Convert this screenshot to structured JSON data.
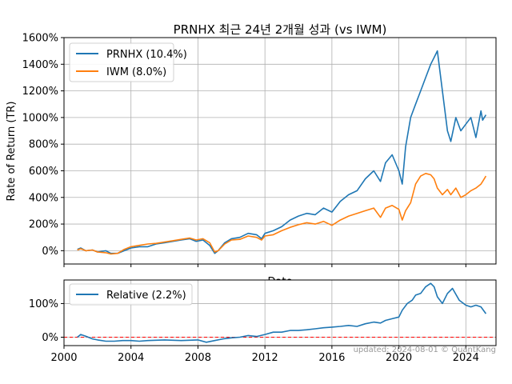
{
  "chart_data": [
    {
      "type": "line",
      "title": "PRNHX 최근 24년 2개월 성과 (vs IWM)",
      "xlabel": "Date",
      "ylabel": "Rate of Return (TR)",
      "xlim": [
        2000.0,
        2025.8
      ],
      "ylim": [
        -100,
        1600
      ],
      "yticks": [
        0,
        200,
        400,
        600,
        800,
        1000,
        1200,
        1400,
        1600
      ],
      "ytick_labels": [
        "0%",
        "200%",
        "400%",
        "600%",
        "800%",
        "1000%",
        "1200%",
        "1400%",
        "1600%"
      ],
      "grid": true,
      "legend_position": "upper-left",
      "series": [
        {
          "name": "PRNHX (10.4%)",
          "color": "#1f77b4",
          "x": [
            2000.8,
            2001.0,
            2001.3,
            2001.7,
            2002.0,
            2002.5,
            2002.8,
            2003.2,
            2003.6,
            2004.0,
            2004.5,
            2005.0,
            2005.5,
            2006.0,
            2006.5,
            2007.0,
            2007.5,
            2007.9,
            2008.3,
            2008.7,
            2009.0,
            2009.2,
            2009.6,
            2010.0,
            2010.5,
            2011.0,
            2011.5,
            2011.8,
            2012.0,
            2012.5,
            2013.0,
            2013.5,
            2014.0,
            2014.5,
            2015.0,
            2015.5,
            2016.0,
            2016.5,
            2017.0,
            2017.5,
            2018.0,
            2018.5,
            2018.9,
            2019.2,
            2019.6,
            2020.0,
            2020.2,
            2020.4,
            2020.7,
            2021.0,
            2021.3,
            2021.6,
            2021.9,
            2022.1,
            2022.3,
            2022.6,
            2022.9,
            2023.1,
            2023.4,
            2023.7,
            2024.0,
            2024.3,
            2024.6,
            2024.9,
            2025.0,
            2025.2
          ],
          "y": [
            10,
            20,
            0,
            5,
            -10,
            0,
            -20,
            -20,
            0,
            20,
            30,
            30,
            50,
            60,
            70,
            80,
            90,
            70,
            80,
            40,
            -20,
            0,
            60,
            90,
            100,
            130,
            120,
            90,
            130,
            150,
            180,
            230,
            260,
            280,
            270,
            320,
            290,
            370,
            420,
            450,
            540,
            600,
            520,
            660,
            720,
            600,
            500,
            780,
            1000,
            1100,
            1200,
            1300,
            1400,
            1450,
            1500,
            1200,
            900,
            820,
            1000,
            900,
            950,
            1000,
            850,
            1050,
            980,
            1020
          ]
        },
        {
          "name": "IWM (8.0%)",
          "color": "#ff7f0e",
          "x": [
            2000.8,
            2001.0,
            2001.3,
            2001.7,
            2002.0,
            2002.5,
            2002.8,
            2003.2,
            2003.6,
            2004.0,
            2004.5,
            2005.0,
            2005.5,
            2006.0,
            2006.5,
            2007.0,
            2007.5,
            2007.9,
            2008.3,
            2008.7,
            2009.0,
            2009.2,
            2009.6,
            2010.0,
            2010.5,
            2011.0,
            2011.5,
            2011.8,
            2012.0,
            2012.5,
            2013.0,
            2013.5,
            2014.0,
            2014.5,
            2015.0,
            2015.5,
            2016.0,
            2016.5,
            2017.0,
            2017.5,
            2018.0,
            2018.5,
            2018.9,
            2019.2,
            2019.6,
            2020.0,
            2020.2,
            2020.4,
            2020.7,
            2021.0,
            2021.3,
            2021.6,
            2021.9,
            2022.1,
            2022.3,
            2022.6,
            2022.9,
            2023.1,
            2023.4,
            2023.7,
            2024.0,
            2024.3,
            2024.6,
            2024.9,
            2025.0,
            2025.2
          ],
          "y": [
            5,
            15,
            0,
            5,
            -10,
            -15,
            -25,
            -20,
            10,
            30,
            40,
            50,
            55,
            65,
            75,
            85,
            95,
            80,
            90,
            60,
            -10,
            0,
            50,
            80,
            85,
            110,
            100,
            80,
            110,
            120,
            150,
            175,
            195,
            210,
            200,
            220,
            190,
            230,
            260,
            280,
            300,
            320,
            250,
            320,
            340,
            310,
            230,
            300,
            360,
            500,
            560,
            580,
            570,
            540,
            470,
            420,
            460,
            420,
            470,
            400,
            420,
            450,
            470,
            500,
            520,
            560
          ]
        }
      ]
    },
    {
      "type": "line",
      "xlim": [
        2000.0,
        2025.8
      ],
      "ylim": [
        -25,
        170
      ],
      "yticks": [
        0,
        100
      ],
      "ytick_labels": [
        "0%",
        "100%"
      ],
      "xticks": [
        2000,
        2004,
        2008,
        2012,
        2016,
        2020,
        2024
      ],
      "xtick_labels": [
        "2000",
        "2004",
        "2008",
        "2012",
        "2016",
        "2020",
        "2024"
      ],
      "grid": true,
      "legend_position": "upper-left",
      "reference_line": {
        "y": 0,
        "color": "#ff0000",
        "style": "dashed"
      },
      "series": [
        {
          "name": "Relative (2.2%)",
          "color": "#1f77b4",
          "x": [
            2000.8,
            2001.0,
            2001.3,
            2001.7,
            2002.0,
            2002.5,
            2003.0,
            2003.5,
            2004.0,
            2004.5,
            2005.0,
            2006.0,
            2007.0,
            2008.0,
            2008.5,
            2009.0,
            2009.5,
            2010.0,
            2010.5,
            2011.0,
            2011.5,
            2012.0,
            2012.5,
            2013.0,
            2013.5,
            2014.0,
            2014.5,
            2015.0,
            2015.5,
            2016.0,
            2016.5,
            2017.0,
            2017.5,
            2018.0,
            2018.5,
            2018.9,
            2019.2,
            2019.6,
            2020.0,
            2020.2,
            2020.5,
            2020.8,
            2021.0,
            2021.3,
            2021.6,
            2021.9,
            2022.1,
            2022.3,
            2022.6,
            2022.9,
            2023.2,
            2023.6,
            2024.0,
            2024.3,
            2024.6,
            2024.9,
            2025.2
          ],
          "y": [
            0,
            8,
            3,
            -5,
            -8,
            -12,
            -12,
            -10,
            -10,
            -12,
            -10,
            -8,
            -10,
            -8,
            -15,
            -10,
            -5,
            -2,
            0,
            5,
            2,
            8,
            15,
            15,
            20,
            20,
            22,
            25,
            28,
            30,
            32,
            35,
            32,
            40,
            45,
            42,
            50,
            55,
            60,
            80,
            100,
            110,
            125,
            130,
            150,
            160,
            150,
            120,
            100,
            130,
            145,
            110,
            95,
            90,
            95,
            90,
            70
          ]
        }
      ]
    }
  ],
  "footer": {
    "watermark": "updated: 2024-08-01 © QuantKang"
  }
}
